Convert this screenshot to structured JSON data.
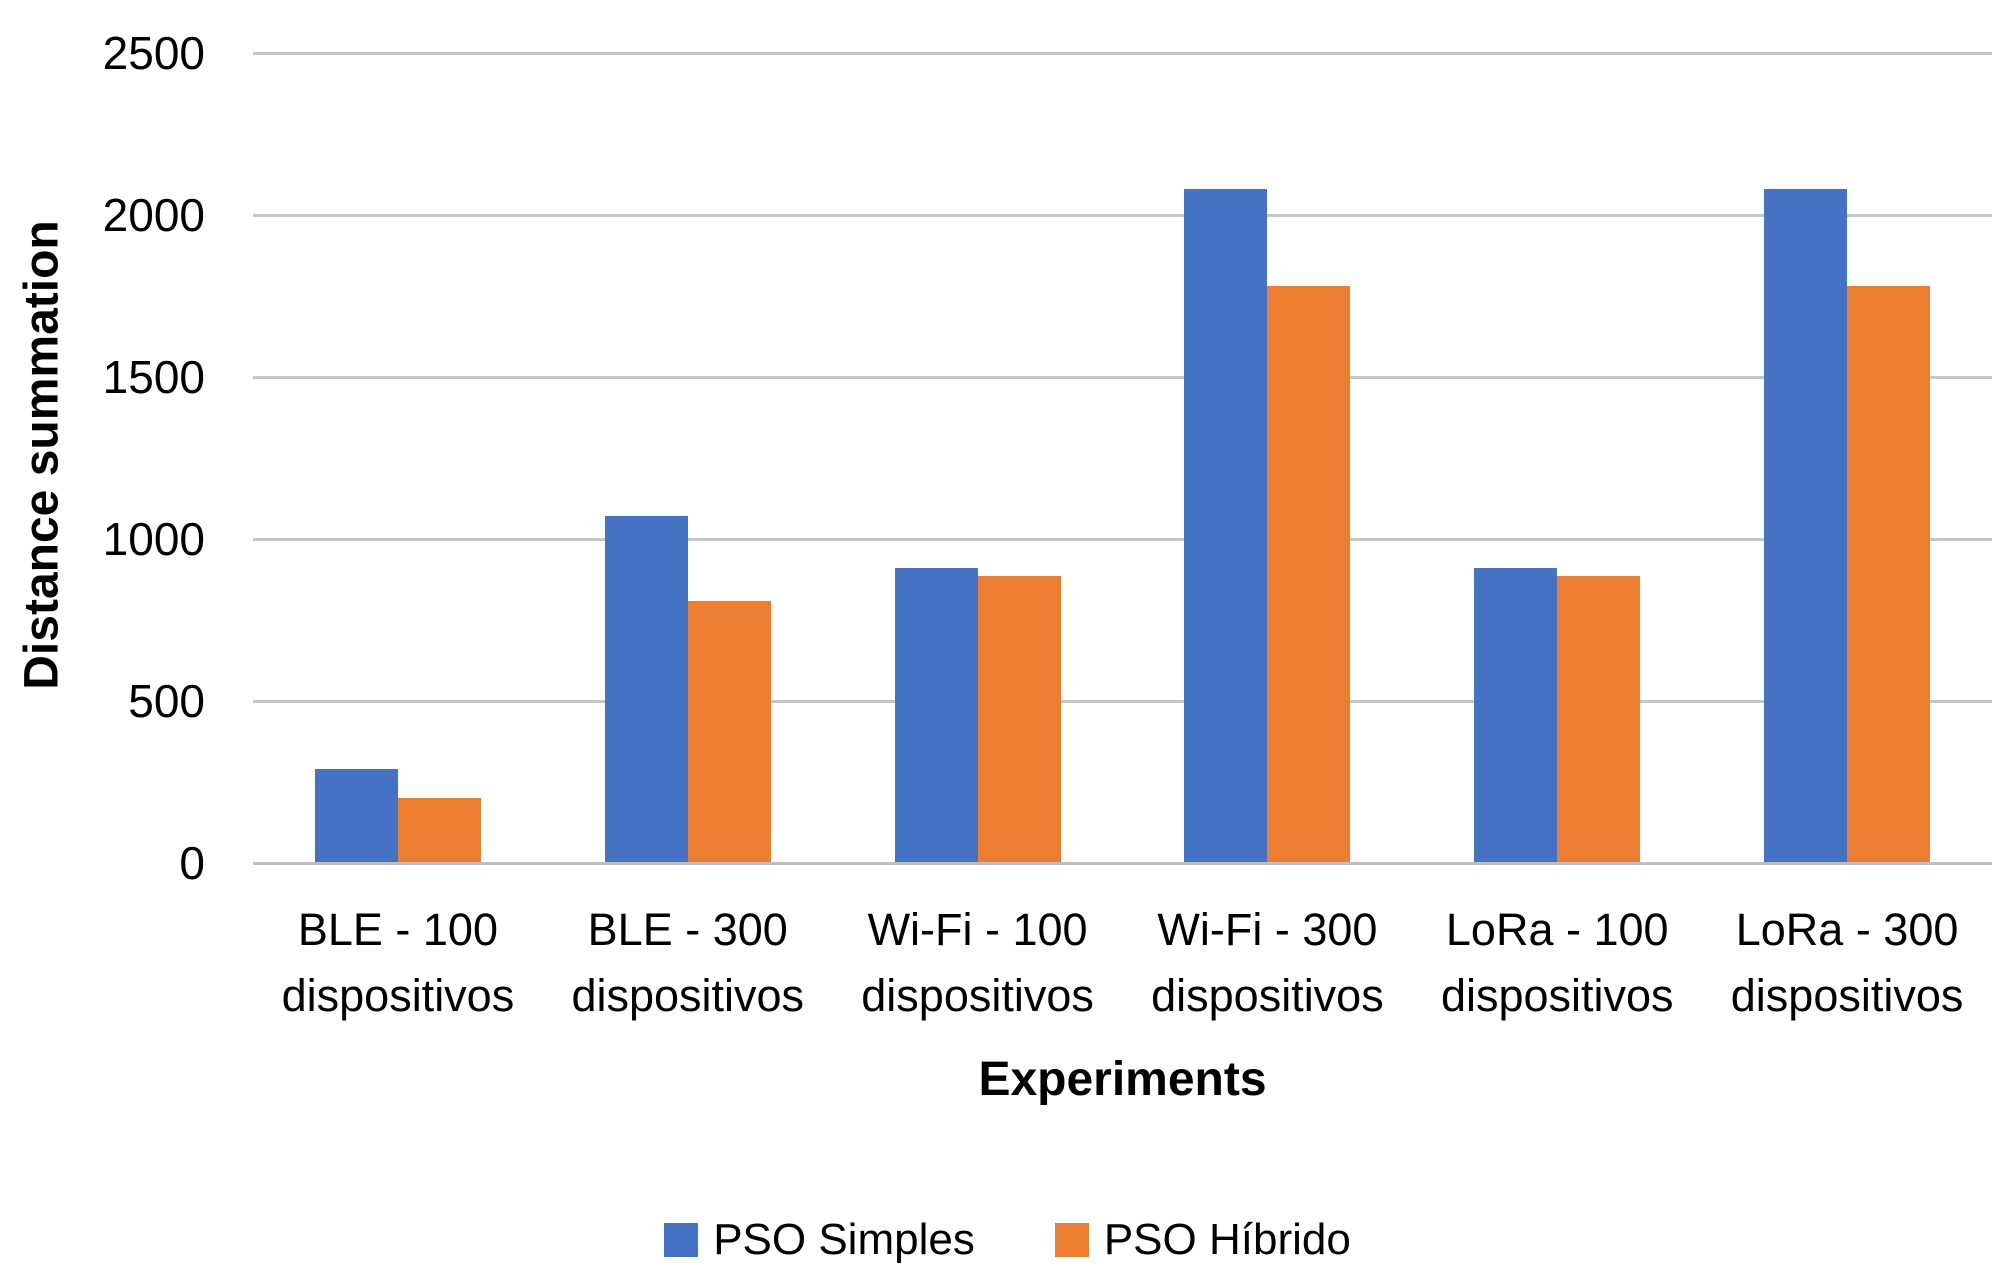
{
  "chart_data": {
    "type": "bar",
    "title": "",
    "xlabel": "Experiments",
    "ylabel": "Distance summation",
    "categories": [
      [
        "BLE - 100",
        "dispositivos"
      ],
      [
        "BLE - 300",
        "dispositivos"
      ],
      [
        "Wi-Fi - 100",
        "dispositivos"
      ],
      [
        "Wi-Fi - 300",
        "dispositivos"
      ],
      [
        "LoRa - 100",
        "dispositivos"
      ],
      [
        "LoRa - 300",
        "dispositivos"
      ]
    ],
    "series": [
      {
        "name": "PSO Simples",
        "color": "#4472C4",
        "values": [
          290,
          1070,
          910,
          2080,
          910,
          2080
        ]
      },
      {
        "name": "PSO Híbrido",
        "color": "#ED7D31",
        "values": [
          200,
          810,
          885,
          1780,
          885,
          1780
        ]
      }
    ],
    "yticks": [
      0,
      500,
      1000,
      1500,
      2000,
      2500
    ],
    "ylim": [
      0,
      2500
    ],
    "grid": true,
    "legend_position": "bottom",
    "gridline_color": "#C6C6C6",
    "axis_line_color": "#BFBFBF",
    "text_color": "#000000"
  }
}
